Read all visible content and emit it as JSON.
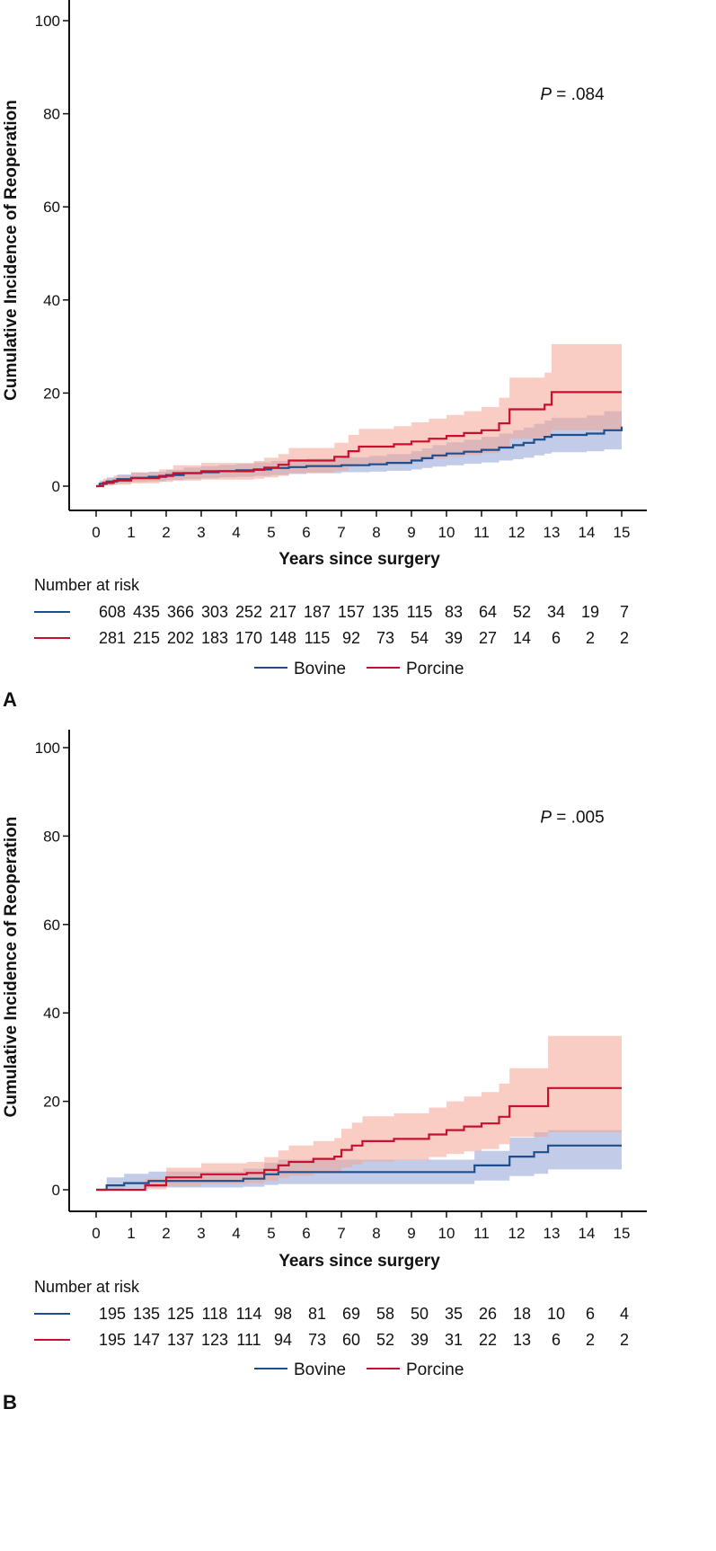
{
  "chart_data": [
    {
      "panel_label": "A",
      "type": "line",
      "subtype": "cumulative-incidence step plot with confidence bands",
      "xlabel": "Years since surgery",
      "ylabel": "Cumulative Incidence of Reoperation",
      "xlim": [
        0,
        15
      ],
      "ylim": [
        0,
        100
      ],
      "x_ticks": [
        "0",
        "1",
        "2",
        "3",
        "4",
        "5",
        "6",
        "7",
        "8",
        "9",
        "10",
        "11",
        "12",
        "13",
        "14",
        "15"
      ],
      "y_ticks": [
        "0",
        "20",
        "40",
        "60",
        "80",
        "100"
      ],
      "p_value": {
        "italic": "P",
        "rest": " = .084"
      },
      "series": [
        {
          "name": "Bovine",
          "color": "#1f4e8c",
          "band_color": "#8fa3d6",
          "x": [
            0,
            0.1,
            0.3,
            0.6,
            1.0,
            1.5,
            2.0,
            2.5,
            3.0,
            3.5,
            4.0,
            4.5,
            5.0,
            5.5,
            6.0,
            7.0,
            7.8,
            8.3,
            9.0,
            9.3,
            9.6,
            10.0,
            10.5,
            11.0,
            11.5,
            11.9,
            12.2,
            12.5,
            12.8,
            13.0,
            14.0,
            14.5,
            15.0
          ],
          "y": [
            0,
            0.5,
            1.0,
            1.5,
            1.8,
            2.0,
            2.4,
            2.8,
            3.0,
            3.2,
            3.4,
            3.6,
            3.9,
            4.1,
            4.3,
            4.5,
            4.7,
            5.0,
            5.5,
            6.0,
            6.6,
            7.0,
            7.4,
            7.8,
            8.3,
            8.8,
            9.3,
            10.0,
            10.6,
            11.0,
            11.3,
            12.0,
            12.8
          ],
          "lower": [
            0,
            0.1,
            0.3,
            0.6,
            0.9,
            1.0,
            1.3,
            1.5,
            1.7,
            1.9,
            2.0,
            2.2,
            2.4,
            2.6,
            2.8,
            3.0,
            3.1,
            3.3,
            3.6,
            3.9,
            4.2,
            4.5,
            4.8,
            5.1,
            5.5,
            5.8,
            6.1,
            6.6,
            7.0,
            7.3,
            7.5,
            7.9,
            8.3
          ],
          "upper": [
            0,
            1.2,
            1.9,
            2.5,
            2.9,
            3.1,
            3.5,
            4.0,
            4.3,
            4.6,
            4.8,
            5.1,
            5.4,
            5.6,
            5.9,
            6.2,
            6.5,
            6.9,
            7.5,
            8.1,
            8.8,
            9.4,
            10.0,
            10.6,
            11.3,
            12.0,
            12.6,
            13.4,
            14.1,
            14.7,
            15.2,
            16.1,
            19.5
          ]
        },
        {
          "name": "Porcine",
          "color": "#c8102e",
          "band_color": "#f4a493",
          "x": [
            0,
            0.2,
            0.5,
            1.0,
            1.8,
            2.2,
            3.0,
            4.5,
            4.8,
            5.2,
            5.5,
            6.8,
            7.2,
            7.5,
            8.5,
            9.0,
            9.5,
            10.0,
            10.5,
            11.0,
            11.5,
            11.8,
            12.8,
            13.0,
            15.0
          ],
          "y": [
            0,
            0.7,
            1.2,
            1.7,
            2.2,
            2.8,
            3.2,
            3.5,
            4.0,
            4.6,
            5.5,
            6.3,
            7.5,
            8.5,
            9.0,
            9.6,
            10.2,
            10.8,
            11.4,
            12.0,
            13.5,
            16.5,
            17.5,
            20.2,
            20.2
          ],
          "lower": [
            0,
            0.1,
            0.3,
            0.6,
            0.9,
            1.2,
            1.4,
            1.6,
            1.9,
            2.2,
            2.8,
            3.3,
            4.1,
            4.8,
            5.1,
            5.5,
            5.9,
            6.3,
            6.7,
            7.1,
            8.0,
            10.2,
            10.8,
            12.0,
            12.0
          ],
          "upper": [
            0,
            1.6,
            2.3,
            3.0,
            3.6,
            4.5,
            5.0,
            5.4,
            6.1,
            6.9,
            8.2,
            9.3,
            11.0,
            12.3,
            12.9,
            13.7,
            14.5,
            15.3,
            16.1,
            17.0,
            19.0,
            23.3,
            24.4,
            30.5,
            30.5
          ]
        }
      ],
      "risk_table": {
        "title": "Number at risk",
        "rows": [
          {
            "series": "Bovine",
            "color": "#1f4e8c",
            "values": [
              "608",
              "435",
              "366",
              "303",
              "252",
              "217",
              "187",
              "157",
              "135",
              "115",
              "83",
              "64",
              "52",
              "34",
              "19",
              "7"
            ]
          },
          {
            "series": "Porcine",
            "color": "#c8102e",
            "values": [
              "281",
              "215",
              "202",
              "183",
              "170",
              "148",
              "115",
              "92",
              "73",
              "54",
              "39",
              "27",
              "14",
              "6",
              "2",
              "2"
            ]
          }
        ]
      },
      "legend": [
        {
          "label": "Bovine",
          "color": "#1f4e8c"
        },
        {
          "label": "Porcine",
          "color": "#c8102e"
        }
      ]
    },
    {
      "panel_label": "B",
      "type": "line",
      "subtype": "cumulative-incidence step plot with confidence bands",
      "xlabel": "Years since surgery",
      "ylabel": "Cumulative Incidence of Reoperation",
      "xlim": [
        0,
        15
      ],
      "ylim": [
        0,
        100
      ],
      "x_ticks": [
        "0",
        "1",
        "2",
        "3",
        "4",
        "5",
        "6",
        "7",
        "8",
        "9",
        "10",
        "11",
        "12",
        "13",
        "14",
        "15"
      ],
      "y_ticks": [
        "0",
        "20",
        "40",
        "60",
        "80",
        "100"
      ],
      "p_value": {
        "italic": "P",
        "rest": " = .005"
      },
      "series": [
        {
          "name": "Bovine",
          "color": "#1f4e8c",
          "band_color": "#8fa3d6",
          "x": [
            0,
            0.3,
            0.8,
            1.5,
            4.2,
            4.8,
            5.2,
            10.8,
            11.8,
            12.5,
            12.9,
            15.0
          ],
          "y": [
            0,
            1.0,
            1.5,
            2.0,
            2.5,
            3.5,
            4.0,
            5.5,
            7.5,
            8.5,
            10.0,
            10.0
          ],
          "lower": [
            0,
            0.1,
            0.3,
            0.5,
            0.7,
            1.1,
            1.3,
            2.1,
            3.1,
            3.6,
            4.6,
            4.6
          ],
          "upper": [
            0,
            2.8,
            3.6,
            4.1,
            4.8,
            6.1,
            6.8,
            8.8,
            11.8,
            13.0,
            13.5,
            13.5
          ]
        },
        {
          "name": "Porcine",
          "color": "#c8102e",
          "band_color": "#f4a493",
          "x": [
            0,
            1.4,
            2.0,
            3.0,
            4.3,
            4.8,
            5.2,
            5.5,
            6.2,
            6.8,
            7.0,
            7.3,
            7.6,
            8.5,
            9.5,
            10.0,
            10.5,
            11.0,
            11.5,
            11.8,
            12.9,
            15.0
          ],
          "y": [
            0,
            1.0,
            2.8,
            3.5,
            3.8,
            4.5,
            5.5,
            6.3,
            7.0,
            7.5,
            9.0,
            10.0,
            11.0,
            11.5,
            12.5,
            13.5,
            14.3,
            15.0,
            16.5,
            18.9,
            23.0,
            23.0
          ],
          "lower": [
            0,
            0.1,
            0.8,
            1.3,
            1.5,
            2.0,
            2.7,
            3.2,
            3.7,
            4.0,
            5.0,
            5.7,
            6.4,
            6.7,
            7.4,
            8.1,
            8.7,
            9.2,
            10.3,
            12.0,
            13.0,
            13.0
          ],
          "upper": [
            0,
            2.5,
            5.0,
            6.0,
            6.3,
            7.4,
            8.9,
            10.0,
            11.0,
            11.7,
            13.8,
            15.2,
            16.6,
            17.3,
            18.6,
            20.0,
            21.1,
            22.1,
            24.0,
            27.5,
            34.8,
            34.8
          ]
        }
      ],
      "risk_table": {
        "title": "Number at risk",
        "rows": [
          {
            "series": "Bovine",
            "color": "#1f4e8c",
            "values": [
              "195",
              "135",
              "125",
              "118",
              "114",
              "98",
              "81",
              "69",
              "58",
              "50",
              "35",
              "26",
              "18",
              "10",
              "6",
              "4"
            ]
          },
          {
            "series": "Porcine",
            "color": "#c8102e",
            "values": [
              "195",
              "147",
              "137",
              "123",
              "111",
              "94",
              "73",
              "60",
              "52",
              "39",
              "31",
              "22",
              "13",
              "6",
              "2",
              "2"
            ]
          }
        ]
      },
      "legend": [
        {
          "label": "Bovine",
          "color": "#1f4e8c"
        },
        {
          "label": "Porcine",
          "color": "#c8102e"
        }
      ]
    }
  ]
}
